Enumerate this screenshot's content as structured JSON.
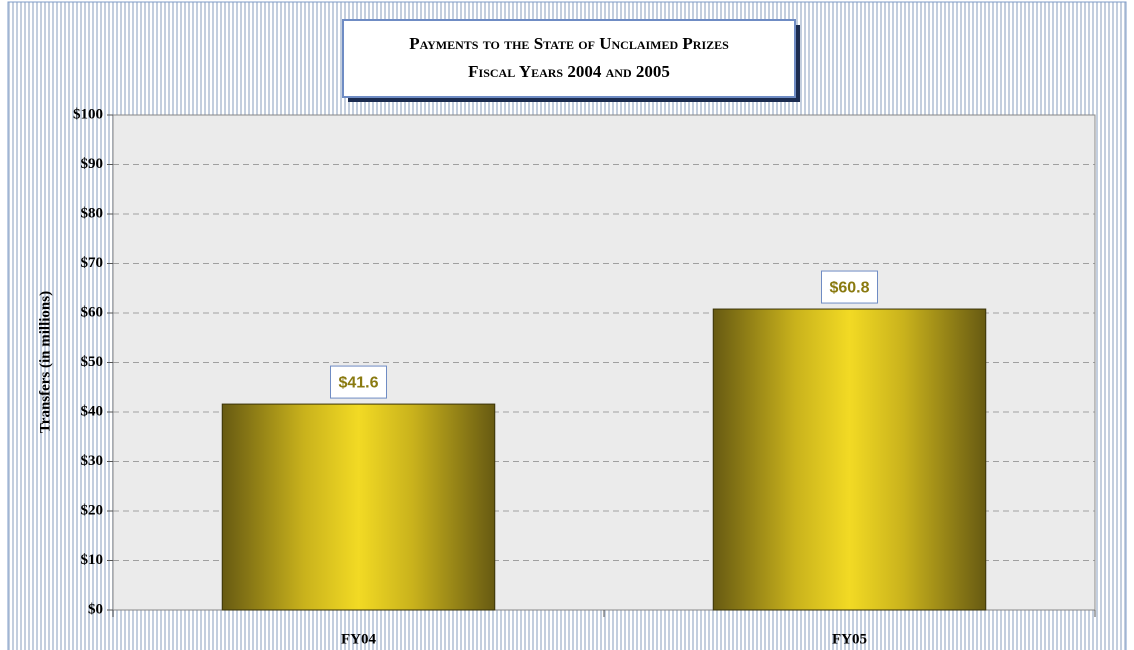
{
  "chart_data": {
    "type": "bar",
    "title": "Payments to the State of Unclaimed Prizes",
    "subtitle": "Fiscal Years 2004 and 2005",
    "y_label": "Transfers (in millions)",
    "categories": [
      "FY04",
      "FY05"
    ],
    "values": [
      41.6,
      60.8
    ],
    "value_labels": [
      "$41.6",
      "$60.8"
    ],
    "color": "#e8d020",
    "ylim": [
      0,
      100
    ],
    "yticks": [
      {
        "value": 0,
        "label": "$0"
      },
      {
        "value": 10,
        "label": "$10"
      },
      {
        "value": 20,
        "label": "$20"
      },
      {
        "value": 30,
        "label": "$30"
      },
      {
        "value": 40,
        "label": "$40"
      },
      {
        "value": 50,
        "label": "$50"
      },
      {
        "value": 60,
        "label": "$60"
      },
      {
        "value": 70,
        "label": "$70"
      },
      {
        "value": 80,
        "label": "$80"
      },
      {
        "value": 90,
        "label": "$90"
      },
      {
        "value": 100,
        "label": "$100"
      }
    ],
    "grid": true
  }
}
